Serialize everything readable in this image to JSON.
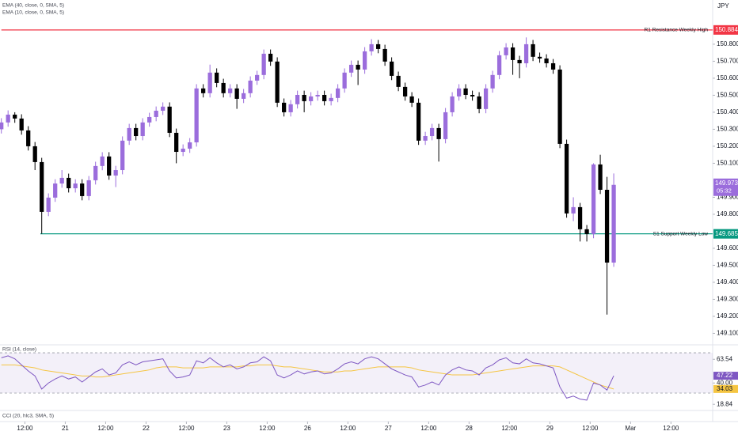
{
  "chart_data": [
    {
      "type": "candlestick",
      "currency": "JPY",
      "indicators": [
        "EMA (40, close, 0, SMA, 5)",
        "EMA (10, close, 0, SMA, 5)"
      ],
      "up_color": "#9b6ddc",
      "down_color": "#000000",
      "xlim": [
        -0.2,
        105.7
      ],
      "ylim": [
        149.037,
        151.06
      ],
      "xticks": [
        {
          "value": 3.5,
          "label": "12:00"
        },
        {
          "value": 9.5,
          "label": "21"
        },
        {
          "value": 15.5,
          "label": "12:00"
        },
        {
          "value": 21.5,
          "label": "22"
        },
        {
          "value": 27.5,
          "label": "12:00"
        },
        {
          "value": 33.5,
          "label": "23"
        },
        {
          "value": 39.5,
          "label": "12:00"
        },
        {
          "value": 45.5,
          "label": "26"
        },
        {
          "value": 51.5,
          "label": "12:00"
        },
        {
          "value": 57.5,
          "label": "27"
        },
        {
          "value": 63.5,
          "label": "12:00"
        },
        {
          "value": 69.5,
          "label": "28"
        },
        {
          "value": 75.5,
          "label": "12:00"
        },
        {
          "value": 81.5,
          "label": "29"
        },
        {
          "value": 87.5,
          "label": "12:00"
        },
        {
          "value": 93.5,
          "label": "Mar"
        },
        {
          "value": 99.5,
          "label": "12:00"
        }
      ],
      "yticks": [
        {
          "value": 149.1,
          "label": "149.100"
        },
        {
          "value": 149.2,
          "label": "149.200"
        },
        {
          "value": 149.3,
          "label": "149.300"
        },
        {
          "value": 149.4,
          "label": "149.400"
        },
        {
          "value": 149.5,
          "label": "149.500"
        },
        {
          "value": 149.6,
          "label": "149.600"
        },
        {
          "value": 149.8,
          "label": "149.800"
        },
        {
          "value": 149.9,
          "label": "149.900"
        },
        {
          "value": 150.1,
          "label": "150.100"
        },
        {
          "value": 150.2,
          "label": "150.200"
        },
        {
          "value": 150.3,
          "label": "150.300"
        },
        {
          "value": 150.4,
          "label": "150.400"
        },
        {
          "value": 150.5,
          "label": "150.500"
        },
        {
          "value": 150.6,
          "label": "150.600"
        },
        {
          "value": 150.7,
          "label": "150.700"
        },
        {
          "value": 150.8,
          "label": "150.800"
        }
      ],
      "levels": [
        {
          "label": "R1 Resistance Weekly High",
          "value": 150.884,
          "color": "#f23645",
          "from": 0
        },
        {
          "label": "S1 Support Weekly Low",
          "value": 149.685,
          "color": "#089981",
          "from": 5.8
        }
      ],
      "countdown": "05:32",
      "open": [
        150.3,
        150.34,
        150.386,
        150.363,
        150.293,
        150.2,
        150.107,
        149.814,
        149.898,
        149.981,
        150.014,
        149.953,
        149.981,
        149.907,
        150.0,
        150.084,
        150.14,
        150.028,
        150.06,
        150.233,
        150.307,
        150.26,
        150.34,
        150.372,
        150.409,
        150.433,
        150.279,
        150.167,
        150.186,
        150.223,
        150.54,
        150.512,
        150.633,
        150.572,
        150.512,
        150.54,
        150.479,
        150.512,
        150.586,
        150.619,
        150.744,
        150.698,
        150.456,
        150.4,
        150.447,
        150.502,
        150.465,
        150.493,
        150.502,
        150.465,
        150.484,
        150.54,
        150.633,
        150.679,
        150.651,
        150.758,
        150.8,
        150.772,
        150.698,
        150.614,
        150.549,
        150.493,
        150.456,
        150.233,
        150.26,
        150.307,
        150.242,
        150.4,
        150.493,
        150.54,
        150.502,
        150.493,
        150.419,
        150.54,
        150.619,
        150.735,
        150.781,
        150.707,
        150.688,
        150.8,
        150.726,
        150.716,
        150.688,
        150.651,
        150.214,
        149.805,
        149.842,
        149.712,
        149.684,
        150.093,
        149.944,
        149.516
      ],
      "high": [
        150.365,
        150.411,
        150.4,
        150.388,
        150.318,
        150.225,
        150.132,
        149.923,
        150.006,
        150.06,
        150.039,
        150.006,
        150.006,
        150.025,
        150.109,
        150.165,
        150.165,
        150.085,
        150.258,
        150.332,
        150.332,
        150.365,
        150.397,
        150.434,
        150.458,
        150.458,
        150.304,
        150.211,
        150.248,
        150.565,
        150.565,
        150.68,
        150.658,
        150.597,
        150.565,
        150.565,
        150.537,
        150.611,
        150.644,
        150.769,
        150.769,
        150.723,
        150.481,
        150.472,
        150.527,
        150.527,
        150.518,
        150.527,
        150.527,
        150.509,
        150.565,
        150.658,
        150.704,
        150.704,
        150.783,
        150.83,
        150.825,
        150.797,
        150.723,
        150.639,
        150.574,
        150.518,
        150.481,
        150.285,
        150.332,
        150.332,
        150.425,
        150.518,
        150.565,
        150.565,
        150.527,
        150.518,
        150.565,
        150.644,
        150.76,
        150.806,
        150.806,
        150.732,
        150.84,
        150.825,
        150.751,
        150.741,
        150.713,
        150.676,
        150.239,
        149.9,
        149.867,
        149.737,
        150.1,
        150.15,
        150.02,
        150.04
      ],
      "low": [
        150.275,
        150.315,
        150.338,
        150.268,
        150.175,
        150.06,
        149.685,
        149.789,
        149.873,
        149.956,
        149.928,
        149.928,
        149.882,
        149.882,
        149.975,
        150.059,
        150.003,
        149.96,
        150.035,
        150.208,
        150.235,
        150.235,
        150.315,
        150.347,
        150.384,
        150.254,
        150.1,
        150.142,
        150.161,
        150.198,
        150.487,
        150.487,
        150.547,
        150.487,
        150.487,
        150.42,
        150.454,
        150.487,
        150.561,
        150.594,
        150.673,
        150.431,
        150.375,
        150.375,
        150.422,
        150.4,
        150.44,
        150.468,
        150.44,
        150.44,
        150.459,
        150.515,
        150.608,
        150.56,
        150.626,
        150.733,
        150.747,
        150.673,
        150.589,
        150.524,
        150.468,
        150.431,
        150.208,
        150.208,
        150.235,
        150.11,
        150.217,
        150.375,
        150.468,
        150.477,
        150.468,
        150.394,
        150.394,
        150.515,
        150.594,
        150.71,
        150.62,
        150.6,
        150.663,
        150.701,
        150.691,
        150.663,
        150.626,
        150.189,
        149.78,
        149.76,
        149.64,
        149.64,
        149.659,
        149.919,
        149.21,
        149.491
      ],
      "close": [
        150.34,
        150.386,
        150.363,
        150.293,
        150.2,
        150.107,
        149.814,
        149.898,
        149.981,
        150.014,
        149.953,
        149.981,
        149.907,
        150.0,
        150.084,
        150.14,
        150.028,
        150.06,
        150.233,
        150.307,
        150.26,
        150.34,
        150.372,
        150.409,
        150.433,
        150.279,
        150.167,
        150.186,
        150.223,
        150.54,
        150.512,
        150.633,
        150.572,
        150.512,
        150.54,
        150.479,
        150.512,
        150.586,
        150.619,
        150.744,
        150.698,
        150.456,
        150.4,
        150.447,
        150.502,
        150.465,
        150.493,
        150.502,
        150.465,
        150.484,
        150.54,
        150.633,
        150.679,
        150.651,
        150.758,
        150.8,
        150.772,
        150.698,
        150.614,
        150.549,
        150.493,
        150.456,
        150.233,
        150.26,
        150.307,
        150.242,
        150.4,
        150.493,
        150.54,
        150.502,
        150.493,
        150.419,
        150.54,
        150.619,
        150.735,
        150.781,
        150.707,
        150.688,
        150.8,
        150.726,
        150.716,
        150.688,
        150.651,
        150.214,
        149.805,
        149.842,
        149.712,
        149.684,
        150.093,
        149.944,
        149.516,
        149.973
      ]
    },
    {
      "type": "line",
      "title": "RSI (14, close)",
      "xlim": [
        -0.2,
        105.7
      ],
      "ylim": [
        13.5,
        77.1
      ],
      "yticks": [
        63.54,
        {
          "value": 40,
          "label": "40.00"
        },
        18.84
      ],
      "bands": [
        70,
        30
      ],
      "band_color": "#7e57c2",
      "series": [
        {
          "color": "#7e57c2",
          "values": [
            65,
            67,
            64,
            58,
            52,
            47,
            34,
            40,
            44,
            47,
            44,
            46,
            41,
            46,
            51,
            54,
            48,
            50,
            58,
            61,
            58,
            61,
            62,
            63,
            64,
            52,
            45,
            46,
            48,
            62,
            60,
            65,
            60,
            56,
            58,
            54,
            56,
            60,
            61,
            66,
            62,
            48,
            45,
            48,
            52,
            49,
            51,
            52,
            49,
            50,
            54,
            59,
            61,
            59,
            64,
            66,
            64,
            59,
            54,
            51,
            48,
            46,
            36,
            38,
            41,
            38,
            48,
            53,
            56,
            53,
            52,
            48,
            55,
            58,
            63,
            65,
            60,
            59,
            64,
            60,
            59,
            57,
            55,
            36,
            25,
            27,
            24,
            23,
            40,
            38,
            33,
            47.22
          ]
        },
        {
          "color": "#f5c542",
          "values": [
            58,
            58,
            58,
            57,
            56,
            55,
            53,
            52,
            51,
            50,
            49,
            48,
            47,
            47,
            46,
            46,
            47,
            48,
            49,
            50,
            51,
            52,
            53,
            55,
            56,
            56,
            56,
            55,
            55,
            55,
            55,
            56,
            56,
            56,
            56,
            56,
            57,
            57,
            58,
            58,
            58,
            57,
            56,
            56,
            55,
            54,
            53,
            52,
            51,
            51,
            51,
            52,
            52,
            53,
            54,
            55,
            56,
            56,
            56,
            56,
            56,
            55,
            53,
            52,
            51,
            50,
            49,
            48,
            48,
            48,
            48,
            49,
            50,
            51,
            52,
            53,
            54,
            55,
            56,
            57,
            57,
            57,
            57,
            56,
            53,
            50,
            47,
            44,
            41,
            38,
            36,
            34.03
          ]
        }
      ]
    },
    {
      "type": "line",
      "title": "CCI (20, hlc3, SMA, 5)"
    }
  ]
}
